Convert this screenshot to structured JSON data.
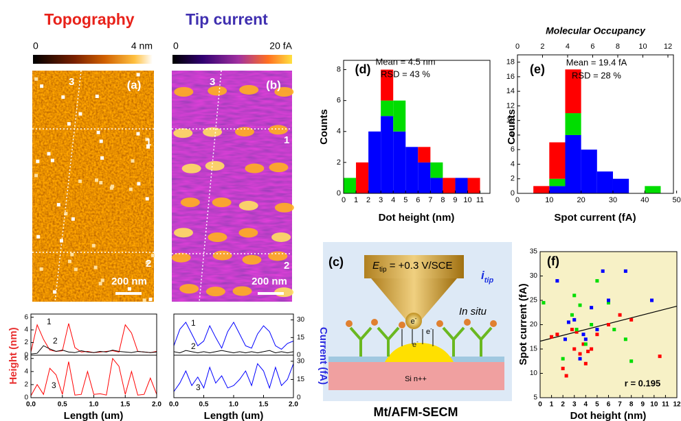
{
  "panel_a": {
    "title": "Topography",
    "colorbar_min": "0",
    "colorbar_max": "4 nm",
    "label": "(a)",
    "line_labels": [
      "3",
      "1",
      "2"
    ],
    "scalebar": "200 nm"
  },
  "panel_b": {
    "title": "Tip current",
    "colorbar_min": "0",
    "colorbar_max": "20 fA",
    "label": "(b)",
    "line_labels": [
      "3",
      "1",
      "2"
    ],
    "scalebar": "200 nm"
  },
  "panel_c": {
    "label": "(c)",
    "potential": {
      "symbol": "E",
      "subscript": "tip",
      "value": " = +0.3 V/SCE"
    },
    "current": {
      "symbol": "i",
      "subscript": "tip"
    },
    "condition": "In situ",
    "electron": "e",
    "electron_charge": "-",
    "substrate": "Si n++",
    "caption": "Mt/AFM-SECM"
  },
  "chart_data": [
    {
      "type": "line",
      "x": [
        0,
        0.1,
        0.2,
        0.3,
        0.4,
        0.5,
        0.6,
        0.7,
        0.8,
        0.9,
        1,
        1.1,
        1.2,
        1.3,
        1.4,
        1.5,
        1.6,
        1.7,
        1.8,
        1.9,
        2
      ],
      "xlim": [
        0,
        2
      ],
      "ylim": [
        0,
        6.5
      ],
      "yticks": [
        0,
        2,
        4,
        6
      ],
      "series": [
        {
          "name": "1",
          "color": "#ff0000",
          "values": [
            0.5,
            4.8,
            2.5,
            0.8,
            0.6,
            0.7,
            5.0,
            1.2,
            0.5,
            0.6,
            0.4,
            0.5,
            0.6,
            0.7,
            0.5,
            4.8,
            3.5,
            0.6,
            0.5,
            0.4,
            0.6
          ]
        },
        {
          "name": "2",
          "color": "#000000",
          "values": [
            0.2,
            0.3,
            1.5,
            1.0,
            0.6,
            0.8,
            0.5,
            0.4,
            0.7,
            0.5,
            0.4,
            0.6,
            0.5,
            0.8,
            0.6,
            0.5,
            0.4,
            0.6,
            0.5,
            0.4,
            0.5
          ]
        }
      ]
    },
    {
      "type": "line",
      "x": [
        0,
        0.1,
        0.2,
        0.3,
        0.4,
        0.5,
        0.6,
        0.7,
        0.8,
        0.9,
        1,
        1.1,
        1.2,
        1.3,
        1.4,
        1.5,
        1.6,
        1.7,
        1.8,
        1.9,
        2
      ],
      "xlim": [
        0,
        2
      ],
      "ylim": [
        0,
        6.5
      ],
      "yticks": [
        0,
        2,
        4,
        6
      ],
      "xticks": [
        {
          "value": 0,
          "label": "0.0"
        },
        {
          "value": 0.5,
          "label": "0.5"
        },
        {
          "value": 1,
          "label": "1.0"
        },
        {
          "value": 1.5,
          "label": "1.5"
        },
        {
          "value": 2,
          "label": "2.0"
        }
      ],
      "xlabel": "Length (um)",
      "ylabel": "Height (nm)",
      "ylabel_color": "#e83030",
      "series": [
        {
          "name": "3",
          "color": "#ff0000",
          "values": [
            0.3,
            2.0,
            0.5,
            4.5,
            3.5,
            0.5,
            5.5,
            0.4,
            0.5,
            4.0,
            0.5,
            0.6,
            0.4,
            6.0,
            4.8,
            0.5,
            4.0,
            0.4,
            0.5,
            3.0,
            0.5
          ]
        }
      ]
    },
    {
      "type": "line",
      "axis_side": "right",
      "x": [
        0,
        0.1,
        0.2,
        0.3,
        0.4,
        0.5,
        0.6,
        0.7,
        0.8,
        0.9,
        1,
        1.1,
        1.2,
        1.3,
        1.4,
        1.5,
        1.6,
        1.7,
        1.8,
        1.9,
        2
      ],
      "xlim": [
        0,
        2
      ],
      "ylim": [
        0,
        35
      ],
      "yticks": [
        0,
        15,
        30
      ],
      "series": [
        {
          "name": "1",
          "color": "#0000ff",
          "values": [
            8,
            22,
            28,
            18,
            8,
            12,
            25,
            15,
            6,
            20,
            28,
            18,
            8,
            6,
            18,
            25,
            20,
            8,
            5,
            10,
            12
          ]
        },
        {
          "name": "2",
          "color": "#000000",
          "values": [
            3,
            2,
            4,
            3,
            2,
            3,
            2,
            3,
            4,
            3,
            2,
            3,
            2,
            3,
            2,
            3,
            4,
            2,
            3,
            2,
            3
          ]
        }
      ]
    },
    {
      "type": "line",
      "axis_side": "right",
      "x": [
        0,
        0.1,
        0.2,
        0.3,
        0.4,
        0.5,
        0.6,
        0.7,
        0.8,
        0.9,
        1,
        1.1,
        1.2,
        1.3,
        1.4,
        1.5,
        1.6,
        1.7,
        1.8,
        1.9,
        2
      ],
      "xlim": [
        0,
        2
      ],
      "ylim": [
        0,
        35
      ],
      "yticks": [
        0,
        15,
        30
      ],
      "xticks": [
        {
          "value": 0,
          "label": "0.0"
        },
        {
          "value": 0.5,
          "label": "0.5"
        },
        {
          "value": 1,
          "label": "1.0"
        },
        {
          "value": 1.5,
          "label": "1.5"
        },
        {
          "value": 2,
          "label": "2.0"
        }
      ],
      "xlabel": "Length (um)",
      "ylabel": "Current (fA)",
      "ylabel_color": "#2a2ae0",
      "series": [
        {
          "name": "3",
          "color": "#0000ff",
          "values": [
            5,
            12,
            22,
            10,
            17,
            8,
            25,
            12,
            18,
            8,
            10,
            15,
            22,
            10,
            28,
            22,
            8,
            25,
            10,
            15,
            28
          ]
        }
      ]
    },
    {
      "type": "histogram",
      "label": "(d)",
      "annotations": [
        "Mean = 4.5 nm",
        "RSD = 43 %"
      ],
      "bins": [
        0,
        1,
        2,
        3,
        4,
        5,
        6,
        7,
        8,
        9,
        10,
        11
      ],
      "xlim": [
        0,
        11.8
      ],
      "xticks": [
        0,
        1,
        2,
        3,
        4,
        5,
        6,
        7,
        8,
        9,
        10,
        11
      ],
      "ylim": [
        0,
        8.6
      ],
      "yticks": [
        0,
        2,
        4,
        6,
        8
      ],
      "xlabel": "Dot height (nm)",
      "ylabel": "Counts",
      "series": [
        {
          "color": "#0000ff",
          "values": [
            0,
            0,
            4,
            5,
            4,
            3,
            2,
            1,
            0,
            1,
            0
          ]
        },
        {
          "color": "#00dd00",
          "values": [
            1,
            0,
            0,
            1,
            2,
            0,
            0,
            1,
            0,
            0,
            0
          ]
        },
        {
          "color": "#ff0000",
          "values": [
            0,
            2,
            0,
            2,
            0,
            0,
            1,
            0,
            1,
            0,
            1
          ]
        }
      ]
    },
    {
      "type": "histogram",
      "label": "(e)",
      "annotations": [
        "Mean = 19.4 fA",
        "RSD = 28 %"
      ],
      "bins": [
        0,
        5,
        10,
        15,
        20,
        25,
        30,
        35,
        40,
        45,
        50
      ],
      "xlim": [
        0,
        49
      ],
      "xticks": [
        0,
        10,
        20,
        30,
        40,
        50
      ],
      "ylim": [
        0,
        19
      ],
      "yticks": [
        0,
        2,
        4,
        6,
        8,
        10,
        12,
        14,
        16,
        18
      ],
      "xlabel": "Spot current (fA)",
      "ylabel": "Counts",
      "x2label": "Molecular Occupancy",
      "x2lim": [
        0,
        12.44
      ],
      "x2ticks": [
        0,
        2,
        4,
        6,
        8,
        10,
        12
      ],
      "series": [
        {
          "color": "#0000ff",
          "values": [
            0,
            0,
            1,
            8,
            6,
            3,
            2,
            0,
            0,
            0
          ]
        },
        {
          "color": "#00dd00",
          "values": [
            0,
            0,
            1,
            3,
            0,
            0,
            0,
            0,
            1,
            0
          ]
        },
        {
          "color": "#ff0000",
          "values": [
            0,
            1,
            5,
            6,
            0,
            0,
            0,
            0,
            0,
            0
          ]
        }
      ]
    },
    {
      "type": "scatter",
      "label": "(f)",
      "annotation": "r = 0.195",
      "background": "#f7f1c6",
      "xlim": [
        0,
        12
      ],
      "xticks": [
        0,
        1,
        2,
        3,
        4,
        5,
        6,
        7,
        8,
        9,
        10,
        11,
        12
      ],
      "ylim": [
        5,
        35
      ],
      "yticks": [
        5,
        10,
        15,
        20,
        25,
        30,
        35
      ],
      "xlabel": "Dot height (nm)",
      "ylabel": "Spot current (fA)",
      "fit": {
        "x": [
          0,
          12
        ],
        "y": [
          16.6,
          23.8
        ]
      },
      "series": [
        {
          "color": "#ff0000",
          "x": [
            1,
            1.5,
            2,
            2.3,
            3,
            3.2,
            3.5,
            3.8,
            4,
            4.5,
            5,
            6,
            7,
            8,
            10.5,
            2.8,
            4.2
          ],
          "y": [
            17.5,
            18,
            11,
            9.5,
            15,
            18.5,
            14,
            16,
            12,
            15,
            18,
            20,
            22,
            21,
            13.5,
            19,
            14.5
          ]
        },
        {
          "color": "#00dd00",
          "x": [
            0.3,
            2,
            2.8,
            3.2,
            3.5,
            4,
            4.5,
            5,
            6,
            6.5,
            7.5,
            8,
            3
          ],
          "y": [
            24.5,
            13,
            22,
            19,
            24,
            16,
            20,
            29,
            24.5,
            19,
            17,
            12.5,
            26
          ]
        },
        {
          "color": "#0000ff",
          "x": [
            1.5,
            2.5,
            3,
            3.5,
            3.8,
            4.5,
            5.5,
            6,
            7.5,
            9.8,
            4,
            5,
            2.2
          ],
          "y": [
            29,
            20.5,
            21,
            13,
            18,
            23.5,
            31,
            25,
            31,
            25,
            17,
            19,
            17
          ]
        }
      ]
    }
  ]
}
